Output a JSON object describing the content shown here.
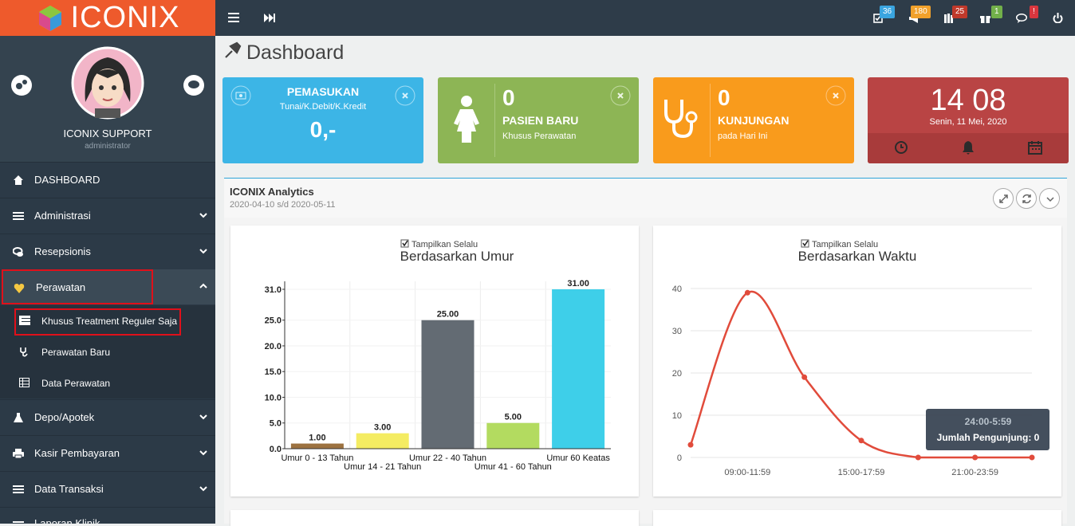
{
  "header": {
    "logo": "ICONIX",
    "badges": [
      "36",
      "180",
      "25",
      "1",
      "!"
    ]
  },
  "sidebar": {
    "user": {
      "name": "ICONIX SUPPORT",
      "role": "administrator"
    },
    "menu": [
      {
        "label": "DASHBOARD"
      },
      {
        "label": "Administrasi"
      },
      {
        "label": "Resepsionis"
      },
      {
        "label": "Perawatan",
        "submenu": [
          "Khusus Treatment Reguler Saja",
          "Perawatan Baru",
          "Data Perawatan"
        ]
      },
      {
        "label": "Depo/Apotek"
      },
      {
        "label": "Kasir Pembayaran"
      },
      {
        "label": "Data Transaksi"
      },
      {
        "label": "Laporan Klinik"
      }
    ]
  },
  "page": {
    "title": "Dashboard"
  },
  "cards": [
    {
      "title": "PEMASUKAN",
      "subtitle": "Tunai/K.Debit/K.Kredit",
      "value": "0,-"
    },
    {
      "value": "0",
      "title": "PASIEN BARU",
      "subtitle": "Khusus Perawatan"
    },
    {
      "value": "0",
      "title": "KUNJUNGAN",
      "subtitle": "pada Hari Ini"
    }
  ],
  "clock": {
    "time": "14 08",
    "date": "Senin, 11 Mei, 2020"
  },
  "panel": {
    "title": "ICONIX Analytics",
    "range": "2020-04-10 s/d 2020-05-11"
  },
  "chart_data": [
    {
      "type": "bar",
      "checkbox": "Tampilkan Selalu",
      "title": "Berdasarkan Umur",
      "categories": [
        "Umur 0 - 13 Tahun",
        "Umur 14 - 21 Tahun",
        "Umur 22 - 40 Tahun",
        "Umur 41 - 60 Tahun",
        "Umur 60 Keatas"
      ],
      "values": [
        1,
        3,
        25,
        5,
        31
      ],
      "value_labels": [
        "1.00",
        "3.00",
        "25.00",
        "5.00",
        "31.00"
      ],
      "colors": [
        "#9c7240",
        "#f4ec62",
        "#636b73",
        "#b3db60",
        "#3ecfe9"
      ],
      "ylim": [
        0,
        31
      ],
      "yticks": [
        {
          "value": 0,
          "label": "0.0"
        },
        {
          "value": 5,
          "label": "5.0"
        },
        {
          "value": 10,
          "label": "10.0"
        },
        {
          "value": 15,
          "label": "15.0"
        },
        {
          "value": 20,
          "label": "20.0"
        },
        {
          "value": 25,
          "label": "25.0"
        },
        {
          "value": 31,
          "label": "31.0"
        }
      ],
      "grid": true
    },
    {
      "type": "line",
      "checkbox": "Tampilkan Selalu",
      "title": "Berdasarkan Waktu",
      "categories": [
        null,
        "09:00-11:59",
        null,
        "15:00-17:59",
        null,
        "21:00-23:59",
        null
      ],
      "values": [
        3,
        39,
        19,
        4,
        0,
        0,
        0
      ],
      "color": "#e14b3b",
      "ylim": [
        0,
        40
      ],
      "yticks": [
        0,
        10,
        20,
        30,
        40
      ],
      "grid": true,
      "tooltip": {
        "title": "24:00-5:59",
        "text": "Jumlah Pengunjung: 0"
      }
    }
  ]
}
